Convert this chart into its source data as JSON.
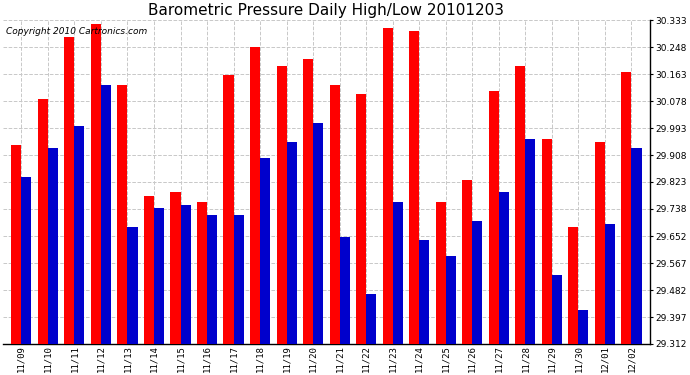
{
  "title": "Barometric Pressure Daily High/Low 20101203",
  "copyright": "Copyright 2010 Cartronics.com",
  "dates": [
    "11/09",
    "11/10",
    "11/11",
    "11/12",
    "11/13",
    "11/14",
    "11/15",
    "11/16",
    "11/17",
    "11/18",
    "11/19",
    "11/20",
    "11/21",
    "11/22",
    "11/23",
    "11/24",
    "11/25",
    "11/26",
    "11/27",
    "11/28",
    "11/29",
    "11/30",
    "12/01",
    "12/02"
  ],
  "highs": [
    29.94,
    30.085,
    30.28,
    30.32,
    30.13,
    29.78,
    29.79,
    29.76,
    30.16,
    30.25,
    30.19,
    30.21,
    30.13,
    30.1,
    30.31,
    30.3,
    29.76,
    29.83,
    30.11,
    30.19,
    29.96,
    29.68,
    29.95,
    30.17
  ],
  "lows": [
    29.84,
    29.93,
    30.0,
    30.13,
    29.68,
    29.74,
    29.75,
    29.72,
    29.72,
    29.9,
    29.95,
    30.01,
    29.65,
    29.47,
    29.76,
    29.64,
    29.59,
    29.7,
    29.79,
    29.96,
    29.53,
    29.42,
    29.69,
    29.93
  ],
  "ymin": 29.312,
  "ymax": 30.333,
  "yticks": [
    29.312,
    29.397,
    29.482,
    29.567,
    29.652,
    29.738,
    29.823,
    29.908,
    29.993,
    30.078,
    30.163,
    30.248,
    30.333
  ],
  "high_color": "#ff0000",
  "low_color": "#0000cc",
  "bg_color": "#ffffff",
  "grid_color": "#c8c8c8",
  "title_fontsize": 11,
  "copyright_fontsize": 6.5,
  "tick_fontsize": 6.5,
  "bar_width": 0.38
}
